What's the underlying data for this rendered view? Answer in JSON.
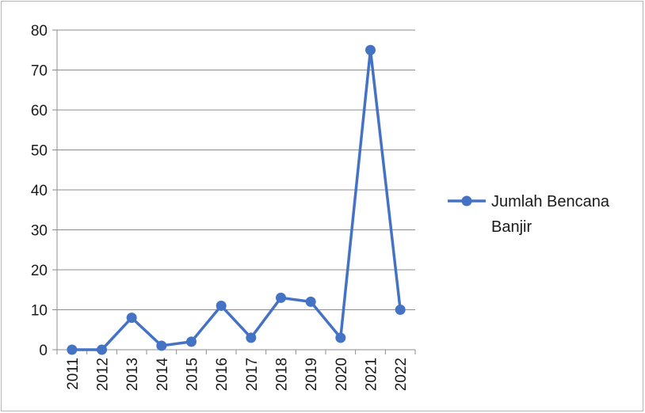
{
  "chart_data": {
    "type": "line",
    "categories": [
      "2011",
      "2012",
      "2013",
      "2014",
      "2015",
      "2016",
      "2017",
      "2018",
      "2019",
      "2020",
      "2021",
      "2022"
    ],
    "series": [
      {
        "name": "Jumlah Bencana Banjir",
        "values": [
          0,
          0,
          8,
          1,
          2,
          11,
          3,
          13,
          12,
          3,
          75,
          10
        ],
        "color": "#4472c4"
      }
    ],
    "ylim": [
      0,
      80
    ],
    "yticks": [
      0,
      10,
      20,
      30,
      40,
      50,
      60,
      70,
      80
    ],
    "grid": true,
    "legend_position": "right",
    "x_tick_rotation": "vertical"
  },
  "legend": {
    "line1": "Jumlah Bencana",
    "line2": "Banjir"
  }
}
